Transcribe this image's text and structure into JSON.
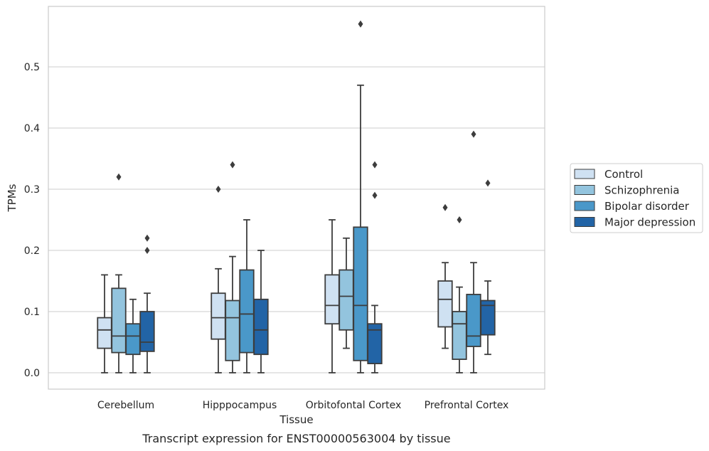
{
  "chart_data": {
    "type": "box",
    "caption": "Transcript expression for ENST00000563004 by tissue",
    "xlabel": "Tissue",
    "ylabel": "TPMs",
    "ylim": [
      -0.028,
      0.59
    ],
    "yticks": [
      0.0,
      0.1,
      0.2,
      0.3,
      0.4,
      0.5
    ],
    "ytick_labels": [
      "0.0",
      "0.1",
      "0.2",
      "0.3",
      "0.4",
      "0.5"
    ],
    "grid": "horizontal",
    "legend_position": "right, outside plot",
    "categories": [
      "Cerebellum",
      "Hipppocampus",
      "Orbitofontal Cortex",
      "Prefrontal Cortex"
    ],
    "series": [
      {
        "name": "Control",
        "color": "#cfe1f2",
        "boxes": [
          {
            "whislo": 0.0,
            "q1": 0.04,
            "med": 0.07,
            "q3": 0.09,
            "whishi": 0.16,
            "fliers": []
          },
          {
            "whislo": 0.0,
            "q1": 0.055,
            "med": 0.09,
            "q3": 0.13,
            "whishi": 0.17,
            "fliers": [
              0.3
            ]
          },
          {
            "whislo": 0.0,
            "q1": 0.08,
            "med": 0.11,
            "q3": 0.16,
            "whishi": 0.25,
            "fliers": []
          },
          {
            "whislo": 0.04,
            "q1": 0.075,
            "med": 0.12,
            "q3": 0.15,
            "whishi": 0.18,
            "fliers": [
              0.27
            ]
          }
        ]
      },
      {
        "name": "Schizophrenia",
        "color": "#93c4de",
        "boxes": [
          {
            "whislo": 0.0,
            "q1": 0.033,
            "med": 0.06,
            "q3": 0.138,
            "whishi": 0.16,
            "fliers": [
              0.32
            ]
          },
          {
            "whislo": 0.0,
            "q1": 0.02,
            "med": 0.09,
            "q3": 0.118,
            "whishi": 0.19,
            "fliers": [
              0.34
            ]
          },
          {
            "whislo": 0.04,
            "q1": 0.07,
            "med": 0.125,
            "q3": 0.168,
            "whishi": 0.22,
            "fliers": []
          },
          {
            "whislo": 0.0,
            "q1": 0.022,
            "med": 0.08,
            "q3": 0.1,
            "whishi": 0.14,
            "fliers": [
              0.25
            ]
          }
        ]
      },
      {
        "name": "Bipolar disorder",
        "color": "#4a98c9",
        "boxes": [
          {
            "whislo": 0.0,
            "q1": 0.03,
            "med": 0.06,
            "q3": 0.08,
            "whishi": 0.12,
            "fliers": []
          },
          {
            "whislo": 0.0,
            "q1": 0.033,
            "med": 0.096,
            "q3": 0.168,
            "whishi": 0.25,
            "fliers": []
          },
          {
            "whislo": 0.0,
            "q1": 0.02,
            "med": 0.11,
            "q3": 0.238,
            "whishi": 0.47,
            "fliers": [
              0.57
            ]
          },
          {
            "whislo": 0.0,
            "q1": 0.043,
            "med": 0.06,
            "q3": 0.128,
            "whishi": 0.18,
            "fliers": [
              0.39
            ]
          }
        ]
      },
      {
        "name": "Major depression",
        "color": "#2264a6",
        "boxes": [
          {
            "whislo": 0.0,
            "q1": 0.035,
            "med": 0.05,
            "q3": 0.1,
            "whishi": 0.13,
            "fliers": [
              0.2,
              0.22
            ]
          },
          {
            "whislo": 0.0,
            "q1": 0.03,
            "med": 0.07,
            "q3": 0.12,
            "whishi": 0.2,
            "fliers": []
          },
          {
            "whislo": 0.0,
            "q1": 0.015,
            "med": 0.07,
            "q3": 0.08,
            "whishi": 0.11,
            "fliers": [
              0.29,
              0.34
            ]
          },
          {
            "whislo": 0.03,
            "q1": 0.062,
            "med": 0.11,
            "q3": 0.118,
            "whishi": 0.15,
            "fliers": [
              0.31
            ]
          }
        ]
      }
    ]
  }
}
